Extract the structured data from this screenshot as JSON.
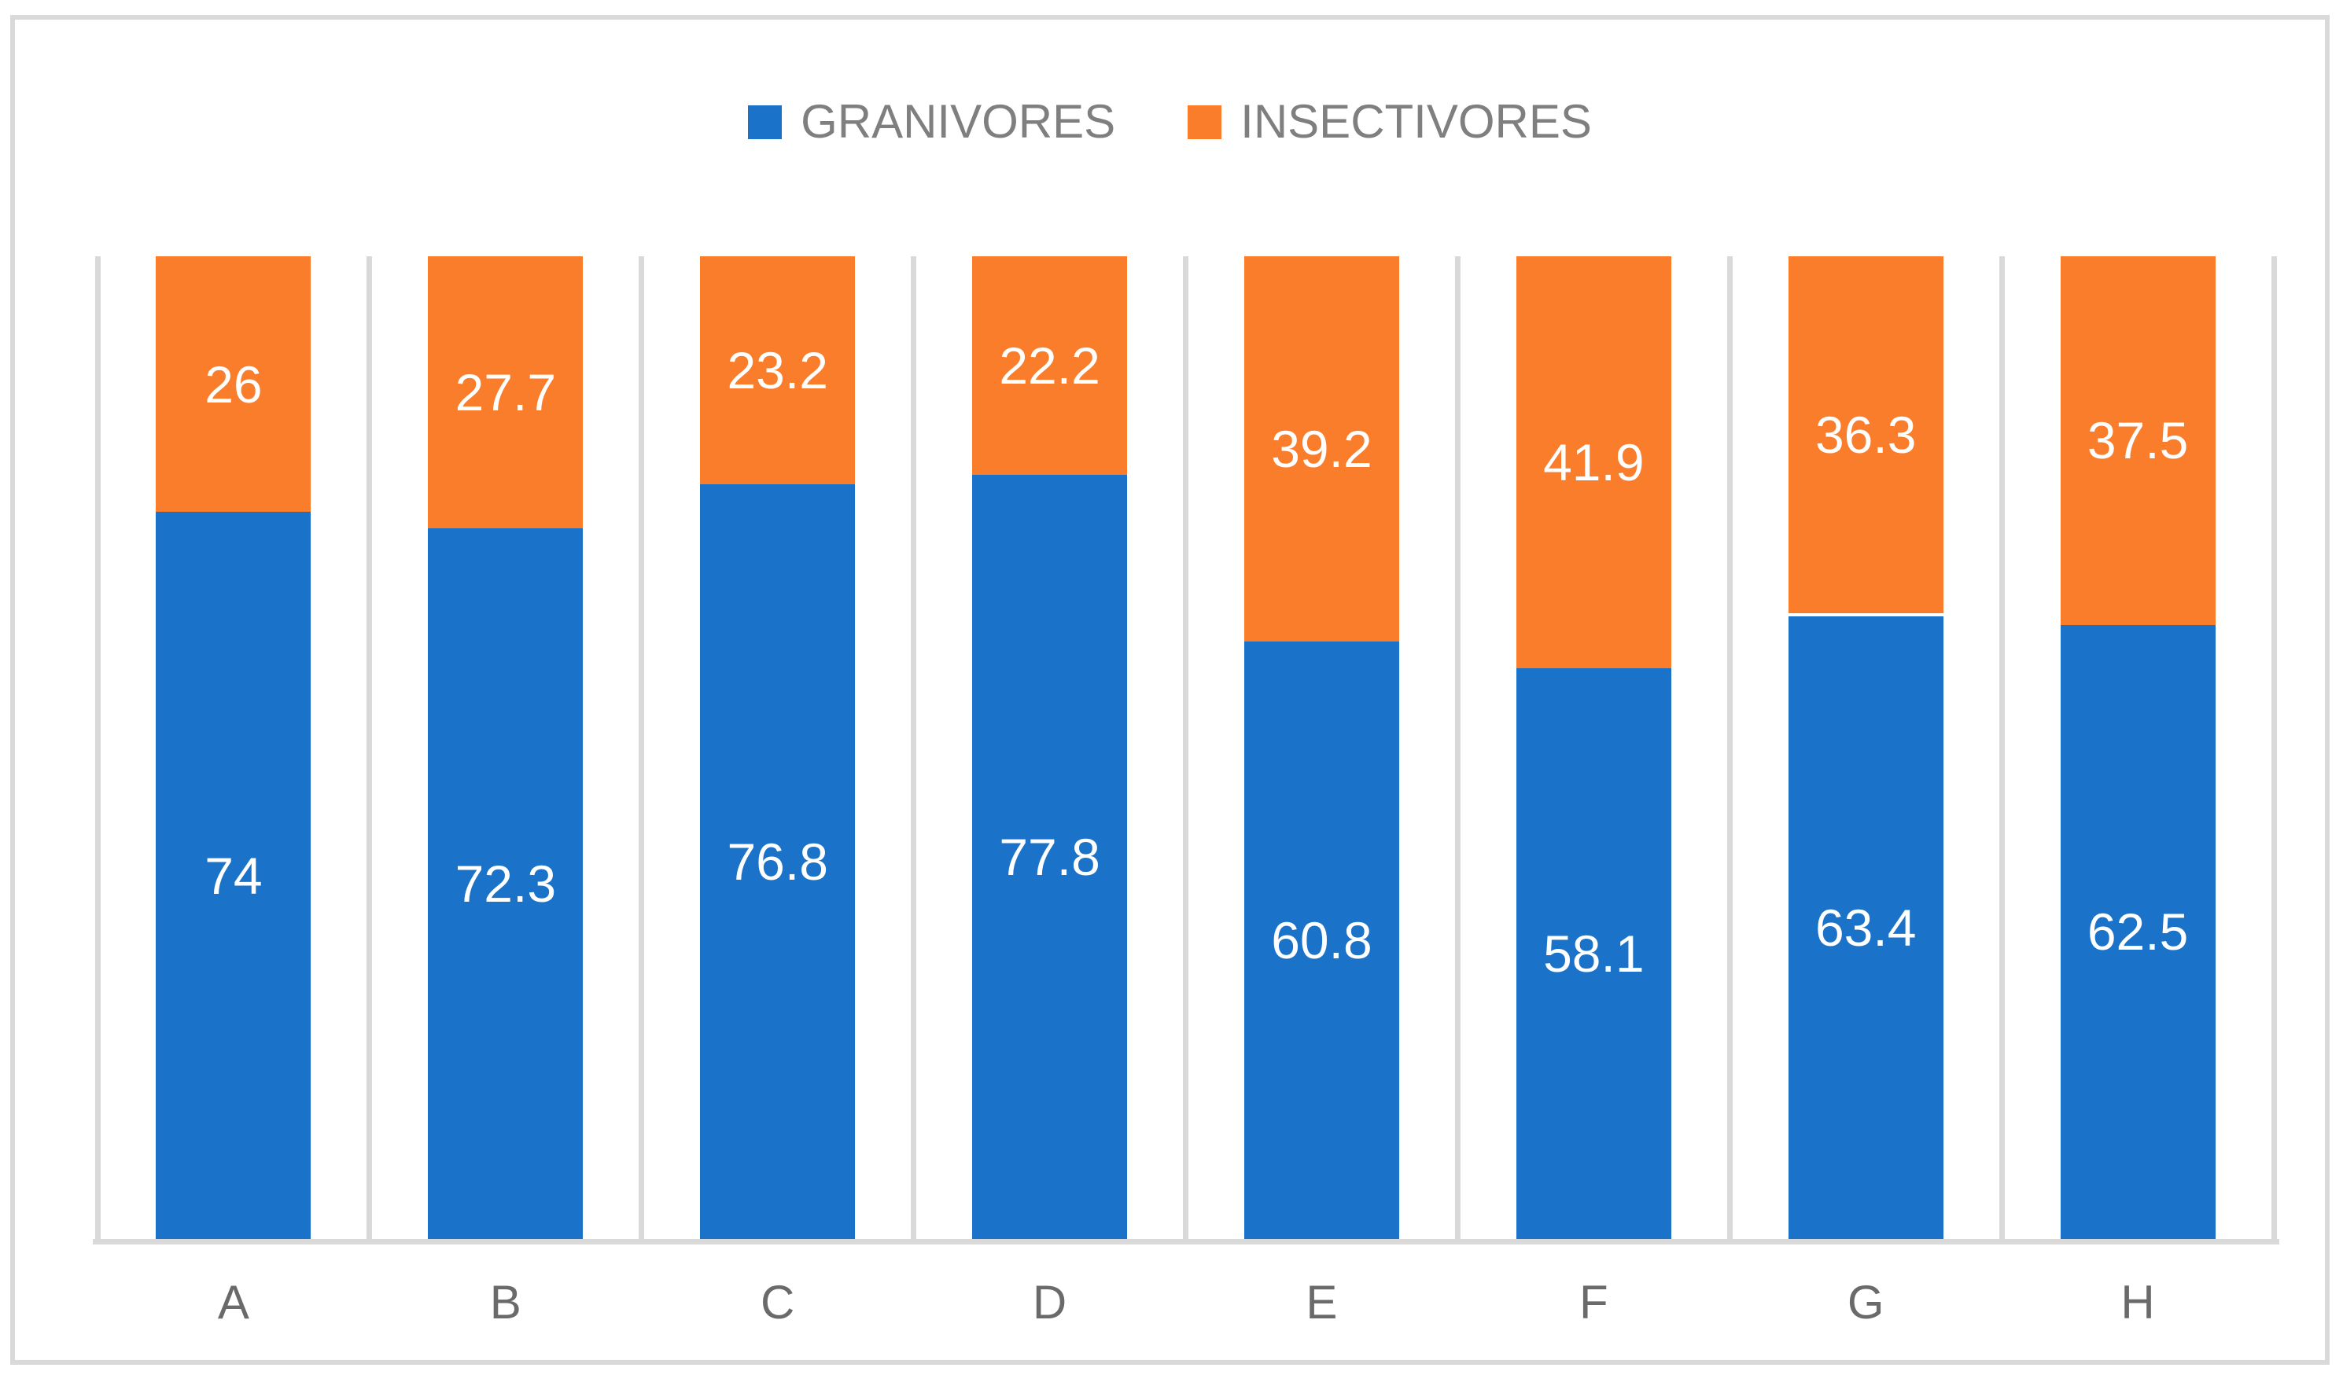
{
  "chart_data": {
    "type": "bar",
    "subtype": "stacked-100-percent",
    "title": "",
    "xlabel": "",
    "ylabel": "",
    "ylim": [
      0,
      100
    ],
    "grid": "vertical-category-separators-only",
    "legend_position": "top-center",
    "categories": [
      "A",
      "B",
      "C",
      "D",
      "E",
      "F",
      "G",
      "H"
    ],
    "series": [
      {
        "name": "GRANIVORES",
        "color": "#1a73c8",
        "values": [
          74,
          72.3,
          76.8,
          77.8,
          60.8,
          58.1,
          63.4,
          62.5
        ]
      },
      {
        "name": "INSECTIVORES",
        "color": "#f97d2b",
        "values": [
          26,
          27.7,
          23.2,
          22.2,
          39.2,
          41.9,
          36.3,
          37.5
        ]
      }
    ],
    "data_label_color": "#ffffff",
    "axis_line_color": "#d9d9d9",
    "gridline_color": "#d9d9d9",
    "tick_label_color": "#6a6a6a",
    "legend_text_color": "#7f7f7f",
    "frame_border_color": "#d9d9d9"
  }
}
